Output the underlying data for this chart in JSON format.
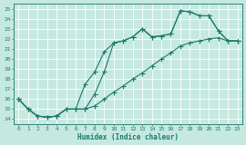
{
  "xlabel": "Humidex (Indice chaleur)",
  "bg_color": "#c5e8e0",
  "line_color": "#1a7a6a",
  "xlim": [
    -0.5,
    23.5
  ],
  "ylim": [
    13.5,
    25.5
  ],
  "xticks": [
    0,
    1,
    2,
    3,
    4,
    5,
    6,
    7,
    8,
    9,
    10,
    11,
    12,
    13,
    14,
    15,
    16,
    17,
    18,
    19,
    20,
    21,
    22,
    23
  ],
  "yticks": [
    14,
    15,
    16,
    17,
    18,
    19,
    20,
    21,
    22,
    23,
    24,
    25
  ],
  "line1_x": [
    0,
    1,
    2,
    3,
    4,
    5,
    6,
    7,
    8,
    9,
    10,
    11,
    12,
    13,
    14,
    15,
    16,
    17,
    18,
    19,
    20,
    21,
    22,
    23
  ],
  "line1_y": [
    16.0,
    15.0,
    14.3,
    14.2,
    14.3,
    15.0,
    15.0,
    15.0,
    16.5,
    18.7,
    21.6,
    21.8,
    22.2,
    23.0,
    22.2,
    22.3,
    22.5,
    24.8,
    24.7,
    24.3,
    24.3,
    22.8,
    21.8,
    21.8
  ],
  "line2_x": [
    0,
    1,
    2,
    3,
    4,
    5,
    6,
    7,
    8,
    9,
    10,
    11,
    12,
    13,
    14,
    15,
    16,
    17,
    18,
    19,
    20,
    21,
    22,
    23
  ],
  "line2_y": [
    16.0,
    15.0,
    14.3,
    14.2,
    14.3,
    15.0,
    15.0,
    17.5,
    18.7,
    20.7,
    21.6,
    21.8,
    22.2,
    23.0,
    22.2,
    22.3,
    22.5,
    24.8,
    24.7,
    24.3,
    24.3,
    22.8,
    21.8,
    21.8
  ],
  "line3_x": [
    0,
    1,
    2,
    3,
    4,
    5,
    6,
    7,
    8,
    9,
    10,
    11,
    12,
    13,
    14,
    15,
    16,
    17,
    18,
    19,
    20,
    21,
    22,
    23
  ],
  "line3_y": [
    16.0,
    15.0,
    14.3,
    14.2,
    14.3,
    15.0,
    15.0,
    15.0,
    15.3,
    16.0,
    16.7,
    17.3,
    18.0,
    18.6,
    19.3,
    20.0,
    20.6,
    21.3,
    21.6,
    21.8,
    22.0,
    22.1,
    21.8,
    21.8
  ]
}
